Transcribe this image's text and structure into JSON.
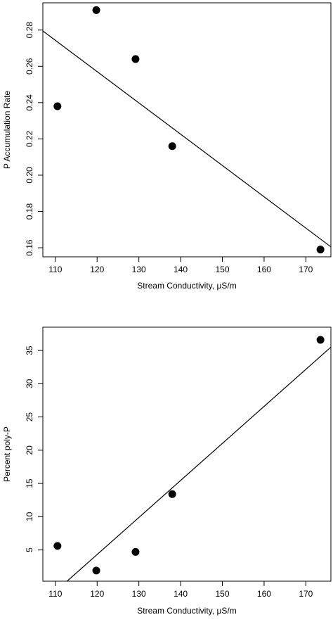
{
  "chart_data": [
    {
      "type": "scatter",
      "xlabel": "Stream Conductivity, μS/m",
      "ylabel": "P Accumulation Rate",
      "xlim": [
        107,
        176
      ],
      "ylim": [
        0.155,
        0.295
      ],
      "xticks": [
        "110",
        "120",
        "130",
        "140",
        "150",
        "160",
        "170"
      ],
      "yticks": [
        "0.16",
        "0.18",
        "0.20",
        "0.22",
        "0.24",
        "0.26",
        "0.28"
      ],
      "points": [
        {
          "x": 110.5,
          "y": 0.238
        },
        {
          "x": 119.8,
          "y": 0.291
        },
        {
          "x": 129.2,
          "y": 0.264
        },
        {
          "x": 138.0,
          "y": 0.216
        },
        {
          "x": 173.5,
          "y": 0.159
        }
      ],
      "fit_line": {
        "x": [
          107,
          176
        ],
        "y": [
          0.2795,
          0.1605
        ]
      },
      "grid": false,
      "legend": "none"
    },
    {
      "type": "scatter",
      "xlabel": "Stream Conductivity, μS/m",
      "ylabel": "Percent poly-P",
      "xlim": [
        107,
        176
      ],
      "ylim": [
        0.3,
        38.5
      ],
      "xticks": [
        "110",
        "120",
        "130",
        "140",
        "150",
        "160",
        "170"
      ],
      "yticks": [
        "5",
        "10",
        "15",
        "20",
        "25",
        "30",
        "35"
      ],
      "points": [
        {
          "x": 110.5,
          "y": 5.6
        },
        {
          "x": 119.8,
          "y": 1.9
        },
        {
          "x": 129.2,
          "y": 4.7
        },
        {
          "x": 138.0,
          "y": 13.4
        },
        {
          "x": 173.5,
          "y": 36.6
        }
      ],
      "fit_line": {
        "x": [
          112.8,
          176
        ],
        "y": [
          0.3,
          35.5
        ]
      },
      "grid": false,
      "legend": "none"
    }
  ]
}
